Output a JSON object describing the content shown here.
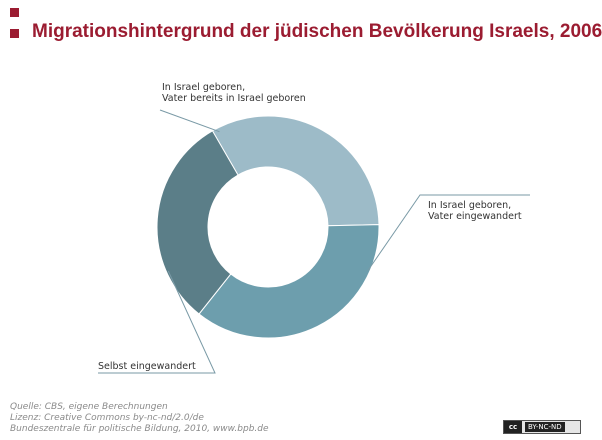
{
  "header": {
    "title": "Migrationshintergrund der jüdischen Bevölkerung Israels, 2006"
  },
  "chart_data": {
    "type": "pie",
    "style": "donut",
    "categories": [
      "In Israel geboren, Vater bereits in Israel geboren",
      "In Israel geboren, Vater eingewandert",
      "Selbst eingewandert"
    ],
    "labels": [
      [
        "In Israel geboren,",
        "Vater bereits in Israel geboren"
      ],
      [
        "In Israel geboren,",
        "Vater eingewandert"
      ],
      [
        "Selbst eingewandert"
      ]
    ],
    "values": [
      33,
      36,
      31
    ],
    "colors": [
      "#9dbbc8",
      "#6d9ead",
      "#5b7e88"
    ]
  },
  "footer": {
    "lines": [
      "Quelle: CBS, eigene Berechnungen",
      "Lizenz: Creative Commons by-nc-nd/2.0/de",
      "Bundeszentrale für politische Bildung, 2010, www.bpb.de"
    ],
    "license_cc": "cc",
    "license_terms": "BY-NC-ND"
  }
}
